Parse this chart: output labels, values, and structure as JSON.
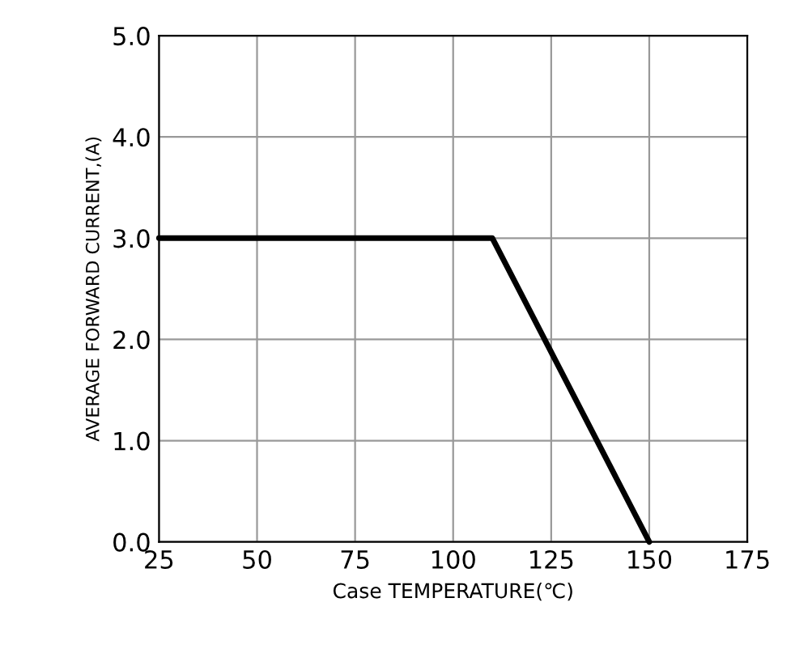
{
  "chart_data": {
    "type": "line",
    "xlabel": "Case TEMPERATURE(℃)",
    "ylabel": "AVERAGE FORWARD CURRENT,(A)",
    "x": [
      25,
      110,
      150
    ],
    "series": [
      {
        "color": "#000000",
        "values": [
          3.0,
          3.0,
          0.0
        ]
      }
    ],
    "xlim": [
      25,
      175
    ],
    "xticks": [
      25,
      50,
      75,
      100,
      125,
      150,
      175
    ],
    "ylim": [
      0,
      5
    ],
    "yticks": [
      {
        "value": 0,
        "label": "0.0"
      },
      {
        "value": 1,
        "label": "1.0"
      },
      {
        "value": 2,
        "label": "2.0"
      },
      {
        "value": 3,
        "label": "3.0"
      },
      {
        "value": 4,
        "label": "4.0"
      },
      {
        "value": 5,
        "label": "5.0"
      }
    ],
    "grid": true,
    "marker": "none",
    "line_style": "solid"
  }
}
